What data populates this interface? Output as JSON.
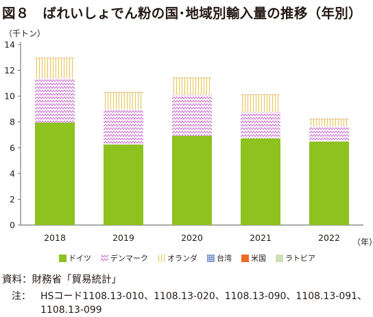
{
  "title": "図８　ばれいしょでん粉の国･地域別輸入量の推移（年別）",
  "chart_data": {
    "type": "bar",
    "stacked": true,
    "ylabel": "（千トン）",
    "xlabel": "（年）",
    "categories": [
      "2018",
      "2019",
      "2020",
      "2021",
      "2022"
    ],
    "ylim": [
      0,
      14
    ],
    "yticks": [
      0,
      2,
      4,
      6,
      8,
      10,
      12,
      14
    ],
    "grid": false,
    "legend_position": "bottom",
    "series": [
      {
        "name": "ドイツ",
        "color": "#8dc21f",
        "pattern": "solid",
        "values": [
          7.95,
          6.25,
          6.92,
          6.72,
          6.48
        ]
      },
      {
        "name": "デンマーク",
        "color": "#c25fc4",
        "pattern": "zigzag",
        "values": [
          3.45,
          2.75,
          3.18,
          2.05,
          1.2
        ]
      },
      {
        "name": "オランダ",
        "color": "#e6c24a",
        "pattern": "vertical",
        "values": [
          1.55,
          1.27,
          1.32,
          1.35,
          0.55
        ]
      },
      {
        "name": "台湾",
        "color": "#3a5fb0",
        "pattern": "grid",
        "values": [
          0,
          0,
          0,
          0,
          0
        ]
      },
      {
        "name": "米国",
        "color": "#ee6b22",
        "pattern": "solid",
        "values": [
          0,
          0.02,
          0,
          0,
          0
        ]
      },
      {
        "name": "ラトビア",
        "color": "#7cab3f",
        "pattern": "diagonal",
        "values": [
          0,
          0,
          0,
          0,
          0
        ]
      }
    ]
  },
  "source": "資料：財務省「貿易統計」",
  "note_label": "注：",
  "note_line1": "HSコード1108.13-010、1108.13-020、1108.13-090、1108.13-091、",
  "note_line2": "1108.13-099"
}
